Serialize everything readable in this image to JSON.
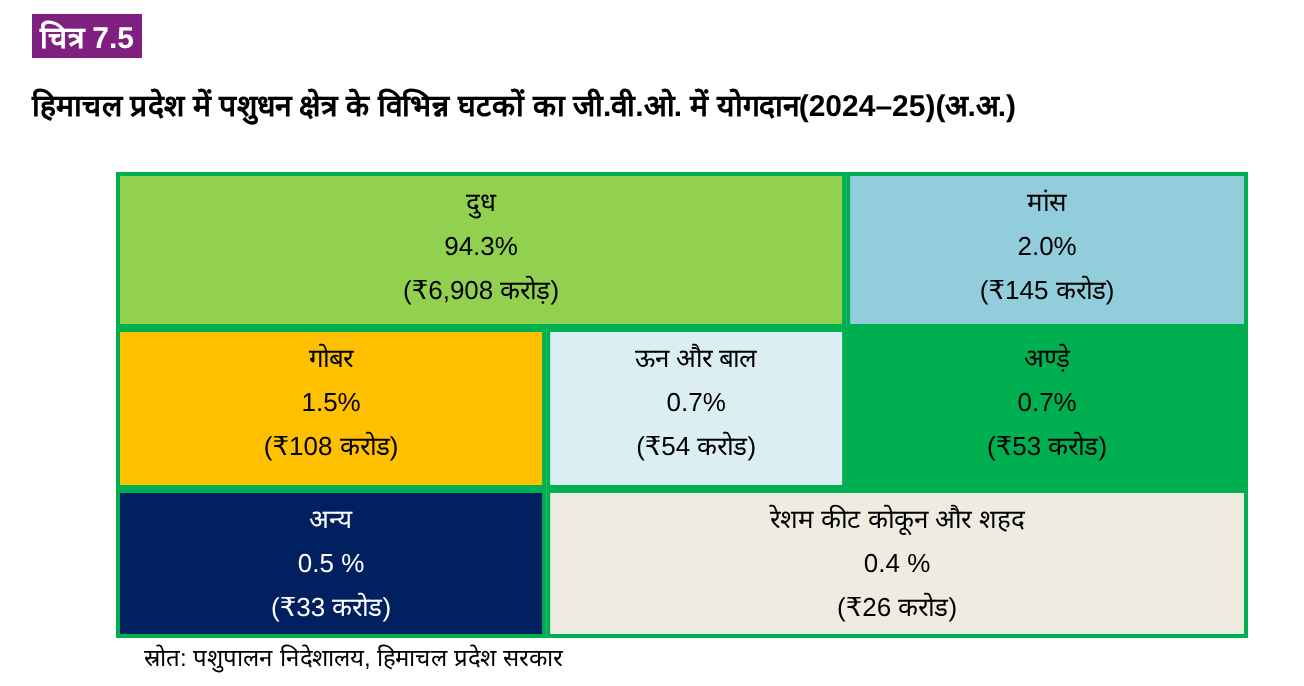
{
  "chart_data": {
    "type": "other",
    "title": "हिमाचल प्रदेश में पशुधन क्षेत्र के विभिन्न घटकों का जी.वी.ओ. में योगदान(2024–25)(अ.अ.)",
    "categories": [
      "दुध",
      "मांस",
      "गोबर",
      "ऊन और बाल",
      "अण्ड़े",
      "अन्य",
      "रेशम कीट कोकून और शहद"
    ],
    "values": [
      94.3,
      2.0,
      1.5,
      0.7,
      0.7,
      0.5,
      0.4
    ],
    "value_labels": [
      "94.3%",
      "2.0%",
      "1.5%",
      "0.7%",
      "0.7%",
      "0.5 %",
      "0.4 %"
    ],
    "colors": [
      "#92d050",
      "#92cddc",
      "#ffc000",
      "#daeef3",
      "#00b050",
      "#002060",
      "#eeece1"
    ],
    "annotations": [
      "चित्र 7.5",
      {
        "text": "(₹6,908 करोड़)",
        "x": "दुध"
      },
      {
        "text": "(₹145 करोड)",
        "x": "मांस"
      },
      {
        "text": "(₹108 करोड)",
        "x": "गोबर"
      },
      {
        "text": "(₹54 करोड)",
        "x": "ऊन और बाल"
      },
      {
        "text": "(₹53 करोड)",
        "x": "अण्ड़े"
      },
      {
        "text": "(₹33 करोड)",
        "x": "अन्य"
      },
      {
        "text": "(₹26 करोड)",
        "x": "रेशम कीट कोकून और शहद"
      },
      "स्रोत: पशुपालन निदेशालय, हिमाचल प्रदेश सरकार"
    ]
  }
}
